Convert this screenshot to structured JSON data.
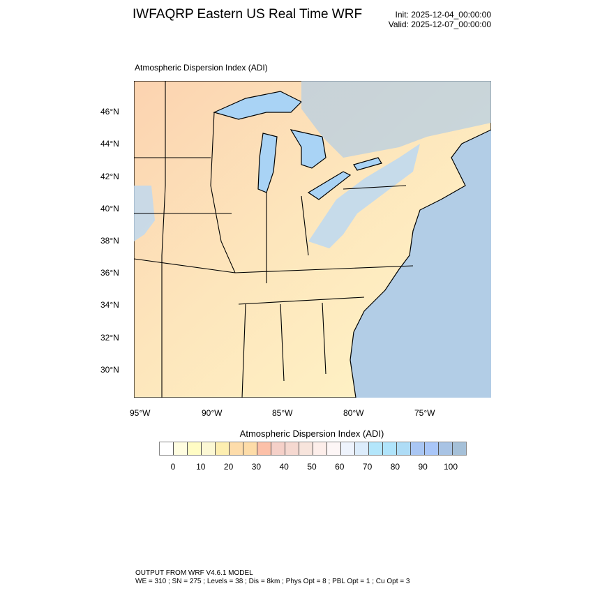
{
  "header": {
    "title": "IWFAQRP Eastern US Real Time WRF",
    "init": "Init: 2025-12-04_00:00:00",
    "valid": "Valid: 2025-12-07_00:00:00"
  },
  "map": {
    "subtitle": "Atmospheric Dispersion Index   (ADI)",
    "lat_labels": [
      "46°N",
      "44°N",
      "42°N",
      "40°N",
      "38°N",
      "36°N",
      "34°N",
      "32°N",
      "30°N"
    ],
    "lon_labels": [
      "95°W",
      "90°W",
      "85°W",
      "80°W",
      "75°W"
    ],
    "colors": {
      "ocean": "#b2cde6",
      "lake": "#a9d3f5",
      "land_low": "#fff4c4",
      "land_mid": "#fcd9b4",
      "land_high": "#b8dcf5"
    }
  },
  "colorbar": {
    "title": "Atmospheric Dispersion Index  (ADI)",
    "labels": [
      "0",
      "10",
      "20",
      "30",
      "40",
      "50",
      "60",
      "70",
      "80",
      "90",
      "100"
    ],
    "colors": [
      "#ffffff",
      "#fffde0",
      "#fffcc4",
      "#fcf8d4",
      "#fdeeb0",
      "#fddcaa",
      "#fddca8",
      "#fcc0a8",
      "#f5d0c8",
      "#f5d8d0",
      "#f7e4dc",
      "#fdeeea",
      "#fdf6f6",
      "#eef3fc",
      "#dcecfb",
      "#b3e6fb",
      "#b0e4fb",
      "#aedcf6",
      "#a9c6f3",
      "#a9c6f8",
      "#a8c3e4",
      "#a5c0d8"
    ]
  },
  "footer": {
    "line1": "OUTPUT FROM WRF V4.6.1 MODEL",
    "line2": "WE = 310 ; SN = 275 ; Levels = 38 ; Dis = 8km ; Phys Opt = 8 ; PBL Opt = 1 ; Cu Opt = 3"
  }
}
